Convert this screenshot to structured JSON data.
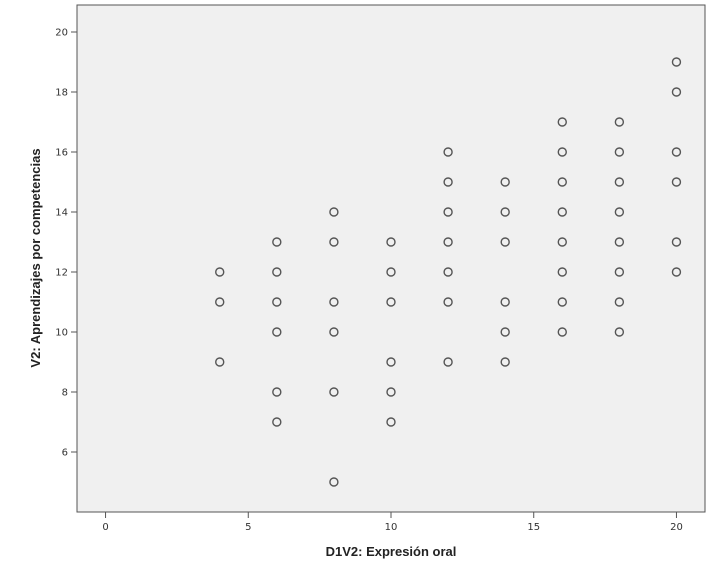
{
  "chart_data": {
    "type": "scatter",
    "title": "",
    "xlabel": "D1V2: Expresión oral",
    "ylabel": "V2: Aprendizajes por competencias",
    "xlim": [
      -1,
      21
    ],
    "ylim": [
      4,
      20.9
    ],
    "x_ticks": [
      0,
      5,
      10,
      15,
      20
    ],
    "y_ticks": [
      6,
      8,
      10,
      12,
      14,
      16,
      18,
      20
    ],
    "grid": false,
    "legend": "none",
    "plot_background": "#f0f0f0",
    "marker_color": "#555555",
    "points": [
      {
        "x": 4,
        "y": 12
      },
      {
        "x": 4,
        "y": 11
      },
      {
        "x": 4,
        "y": 9
      },
      {
        "x": 6,
        "y": 13
      },
      {
        "x": 6,
        "y": 12
      },
      {
        "x": 6,
        "y": 11
      },
      {
        "x": 6,
        "y": 10
      },
      {
        "x": 6,
        "y": 8
      },
      {
        "x": 6,
        "y": 7
      },
      {
        "x": 8,
        "y": 14
      },
      {
        "x": 8,
        "y": 13
      },
      {
        "x": 8,
        "y": 11
      },
      {
        "x": 8,
        "y": 10
      },
      {
        "x": 8,
        "y": 8
      },
      {
        "x": 8,
        "y": 5
      },
      {
        "x": 10,
        "y": 13
      },
      {
        "x": 10,
        "y": 12
      },
      {
        "x": 10,
        "y": 11
      },
      {
        "x": 10,
        "y": 9
      },
      {
        "x": 10,
        "y": 8
      },
      {
        "x": 10,
        "y": 7
      },
      {
        "x": 12,
        "y": 16
      },
      {
        "x": 12,
        "y": 15
      },
      {
        "x": 12,
        "y": 14
      },
      {
        "x": 12,
        "y": 13
      },
      {
        "x": 12,
        "y": 12
      },
      {
        "x": 12,
        "y": 11
      },
      {
        "x": 12,
        "y": 9
      },
      {
        "x": 14,
        "y": 15
      },
      {
        "x": 14,
        "y": 14
      },
      {
        "x": 14,
        "y": 13
      },
      {
        "x": 14,
        "y": 11
      },
      {
        "x": 14,
        "y": 10
      },
      {
        "x": 14,
        "y": 9
      },
      {
        "x": 16,
        "y": 17
      },
      {
        "x": 16,
        "y": 16
      },
      {
        "x": 16,
        "y": 15
      },
      {
        "x": 16,
        "y": 14
      },
      {
        "x": 16,
        "y": 13
      },
      {
        "x": 16,
        "y": 12
      },
      {
        "x": 16,
        "y": 11
      },
      {
        "x": 16,
        "y": 10
      },
      {
        "x": 18,
        "y": 17
      },
      {
        "x": 18,
        "y": 16
      },
      {
        "x": 18,
        "y": 15
      },
      {
        "x": 18,
        "y": 14
      },
      {
        "x": 18,
        "y": 13
      },
      {
        "x": 18,
        "y": 12
      },
      {
        "x": 18,
        "y": 11
      },
      {
        "x": 18,
        "y": 10
      },
      {
        "x": 20,
        "y": 19
      },
      {
        "x": 20,
        "y": 18
      },
      {
        "x": 20,
        "y": 16
      },
      {
        "x": 20,
        "y": 15
      },
      {
        "x": 20,
        "y": 13
      },
      {
        "x": 20,
        "y": 12
      }
    ]
  }
}
